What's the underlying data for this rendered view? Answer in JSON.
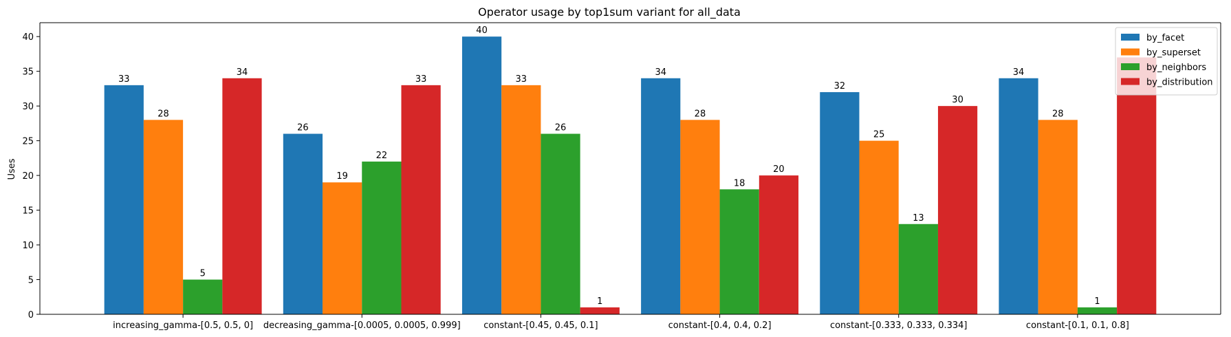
{
  "chart_data": {
    "type": "bar",
    "title": "Operator usage by top1sum variant for all_data",
    "xlabel": "",
    "ylabel": "Uses",
    "ylim": [
      0,
      42
    ],
    "yticks": [
      0,
      5,
      10,
      15,
      20,
      25,
      30,
      35,
      40
    ],
    "grid": false,
    "legend_position": "top-right",
    "categories": [
      "increasing_gamma-[0.5, 0.5, 0]",
      "decreasing_gamma-[0.0005, 0.0005, 0.999]",
      "constant-[0.45, 0.45, 0.1]",
      "constant-[0.4, 0.4, 0.2]",
      "constant-[0.333, 0.333, 0.334]",
      "constant-[0.1, 0.1, 0.8]"
    ],
    "series": [
      {
        "name": "by_facet",
        "color": "#1f77b4",
        "values": [
          33,
          26,
          40,
          34,
          32,
          34
        ],
        "labels": [
          "33",
          "26",
          "40",
          "34",
          "32",
          "34"
        ]
      },
      {
        "name": "by_superset",
        "color": "#ff7f0e",
        "values": [
          28,
          19,
          33,
          28,
          25,
          28
        ],
        "labels": [
          "28",
          "19",
          "33",
          "28",
          "25",
          "28"
        ]
      },
      {
        "name": "by_neighbors",
        "color": "#2ca02c",
        "values": [
          5,
          22,
          26,
          18,
          13,
          1
        ],
        "labels": [
          "5",
          "22",
          "26",
          "18",
          "13",
          "1"
        ]
      },
      {
        "name": "by_distribution",
        "color": "#d62728",
        "values": [
          34,
          33,
          1,
          20,
          30,
          37
        ],
        "labels": [
          "34",
          "33",
          "1",
          "20",
          "30",
          ""
        ]
      }
    ]
  }
}
